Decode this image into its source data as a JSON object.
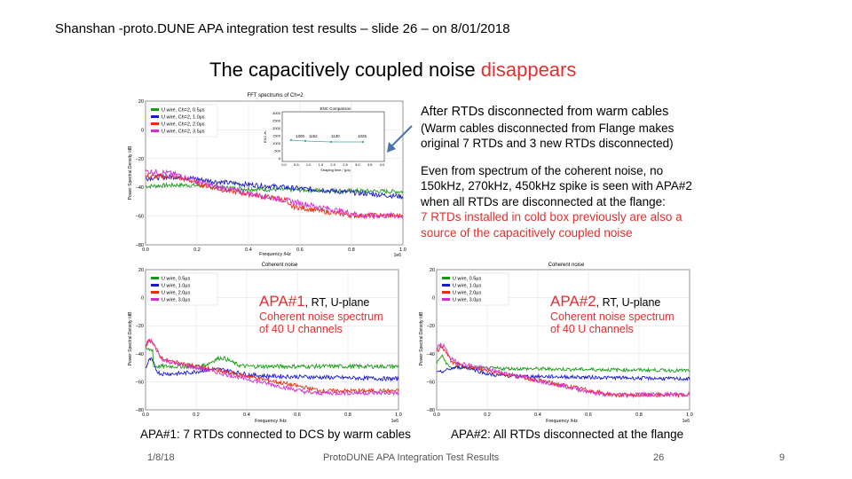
{
  "header": {
    "text": "Shanshan -proto.DUNE APA integration test results – slide 26 – on 8/01/2018"
  },
  "title": {
    "main": "The capacitively coupled noise ",
    "highlight": "disappears"
  },
  "top_plot": {
    "title": "FFT spectrums of Ch=2",
    "xlabel": "Frequency /Hz",
    "ylabel": "Power Spectral Density /dB",
    "x_ticks": [
      "0.0",
      "0.2",
      "0.4",
      "0.6",
      "0.8",
      "1.0"
    ],
    "x_exp": "1e6",
    "y_ticks": [
      "20",
      "0",
      "−20",
      "−40",
      "−60",
      "−80"
    ],
    "legend": [
      "U wire, Ch=2, 0.5μs",
      "U wire, Ch=2, 1.0μs",
      "U wire, Ch=2, 2.0μs",
      "U wire, Ch=2, 3.5μs"
    ],
    "inset": {
      "title": "ENC Comparison",
      "ylabel": "ENC /e-",
      "xlabel": "Shaping time / (μs)",
      "y_ticks": [
        "3000",
        "2500",
        "2000",
        "1500",
        "1000",
        "500",
        "0"
      ],
      "x_ticks": [
        "0.0",
        "0.5",
        "1.0",
        "1.5",
        "2.0",
        "2.5",
        "3.0",
        "3.5",
        "4.0"
      ],
      "point_labels": [
        "1300",
        "1152",
        "1130",
        "1025"
      ]
    }
  },
  "bottom_left_plot": {
    "title": "Coherent noise",
    "xlabel": "Frequency /Hz",
    "ylabel": "Power Spectral Density /dB",
    "x_ticks": [
      "0.0",
      "0.2",
      "0.4",
      "0.6",
      "0.8",
      "1.0"
    ],
    "x_exp": "1e6",
    "y_ticks": [
      "20",
      "0",
      "−20",
      "−40",
      "−60",
      "−80"
    ],
    "legend": [
      "U wire, 0.5μs",
      "U wire, 1.0μs",
      "U wire, 2.0μs",
      "U wire, 3.0μs"
    ]
  },
  "bottom_right_plot": {
    "title": "Coherent noise",
    "xlabel": "Frequency /Hz",
    "ylabel": "Power Spectral Density /dB",
    "x_ticks": [
      "0.0",
      "0.2",
      "0.4",
      "0.6",
      "0.8",
      "1.0"
    ],
    "x_exp": "1e6",
    "y_ticks": [
      "20",
      "0",
      "−20",
      "−40",
      "−60",
      "−80"
    ],
    "legend": [
      "U wire, 0.5μs",
      "U wire, 1.0μs",
      "U wire, 2.0μs",
      "U wire, 3.0μs"
    ]
  },
  "notes": {
    "para1_line1": "After RTDs disconnected from warm cables",
    "para1_line2": "(Warm cables disconnected from Flange makes",
    "para1_line3": "original 7 RTDs and 3 new RTDs disconnected)",
    "para2_line1": "Even from spectrum of the coherent noise, no",
    "para2_line2": "150kHz, 270kHz, 450kHz spike is seen with APA#2",
    "para2_line3": "when all RTDs are disconnected at the flange:",
    "para2_line4": "7 RTDs installed in cold box previously are also a",
    "para2_line5": "source of the capacitively coupled noise"
  },
  "apa1_label": {
    "name": "APA#1",
    "suffix": ", RT, U-plane",
    "line2": "Coherent noise spectrum",
    "line3_pre": "of ",
    "line3_num": "40",
    "line3_post": " U channels"
  },
  "apa2_label": {
    "name": "APA#2",
    "suffix": ", RT, U-plane",
    "line2": "Coherent noise spectrum",
    "line3_pre": "of ",
    "line3_num": "40",
    "line3_post": " U channels"
  },
  "captions": {
    "left": "APA#1: 7 RTDs connected to DCS by warm cables",
    "right": "APA#2: All RTDs disconnected at the flange"
  },
  "footer": {
    "date": "1/8/18",
    "center": "ProtoDUNE APA Integration Test Results",
    "page_a": "26",
    "page_b": "9"
  },
  "colors": {
    "green": "#1a9a1a",
    "blue": "#1a1acc",
    "red": "#ee2a10",
    "magenta": "#d030d0",
    "accent_red": "#e03030",
    "arrow": "#4a72b0"
  }
}
